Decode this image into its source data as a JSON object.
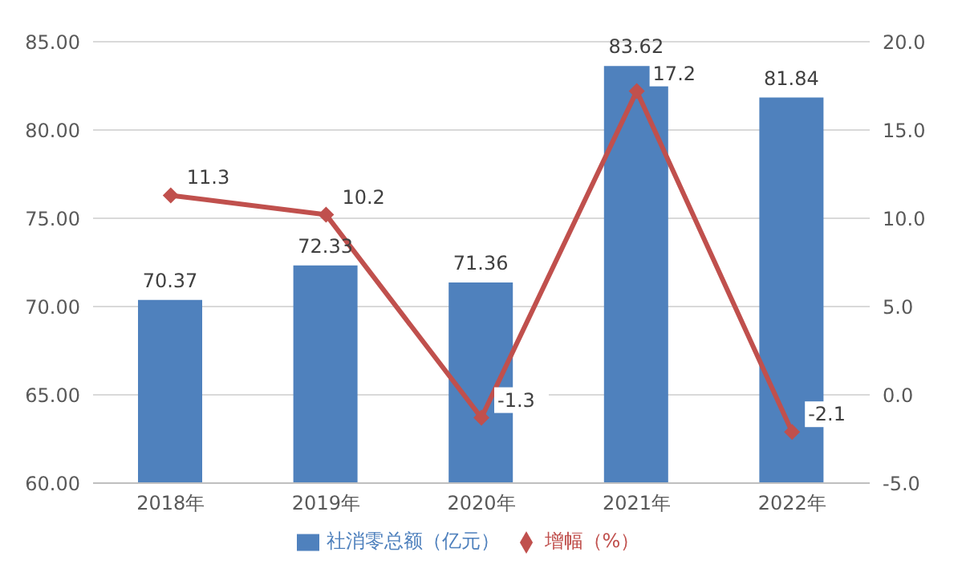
{
  "chart_data": {
    "type": "bar",
    "categories": [
      "2018年",
      "2019年",
      "2020年",
      "2021年",
      "2022年"
    ],
    "series": [
      {
        "name": "社消零总额（亿元）",
        "color": "#4f81bd",
        "values": [
          70.37,
          72.33,
          71.36,
          83.62,
          81.84
        ]
      },
      {
        "name": "增幅（%）",
        "type": "line",
        "axis": "y2",
        "color": "#c0504d",
        "values": [
          11.3,
          10.2,
          -1.3,
          17.2,
          -2.1
        ]
      }
    ],
    "ylim": [
      60,
      85
    ],
    "yticks": [
      {
        "value": 60,
        "label": "60.00"
      },
      {
        "value": 65,
        "label": "65.00"
      },
      {
        "value": 70,
        "label": "70.00"
      },
      {
        "value": 75,
        "label": "75.00"
      },
      {
        "value": 80,
        "label": "80.00"
      },
      {
        "value": 85,
        "label": "85.00"
      }
    ],
    "y2lim": [
      -5,
      20
    ],
    "y2ticks": [
      {
        "value": -5,
        "label": "-5.0"
      },
      {
        "value": 0,
        "label": "0.0"
      },
      {
        "value": 5,
        "label": "5.0"
      },
      {
        "value": 10,
        "label": "10.0"
      },
      {
        "value": 15,
        "label": "15.0"
      },
      {
        "value": 20,
        "label": "20.0"
      }
    ],
    "grid": "y",
    "legend": "bottom",
    "marker": "diamond",
    "line_style": "solid",
    "data_labels": true
  }
}
